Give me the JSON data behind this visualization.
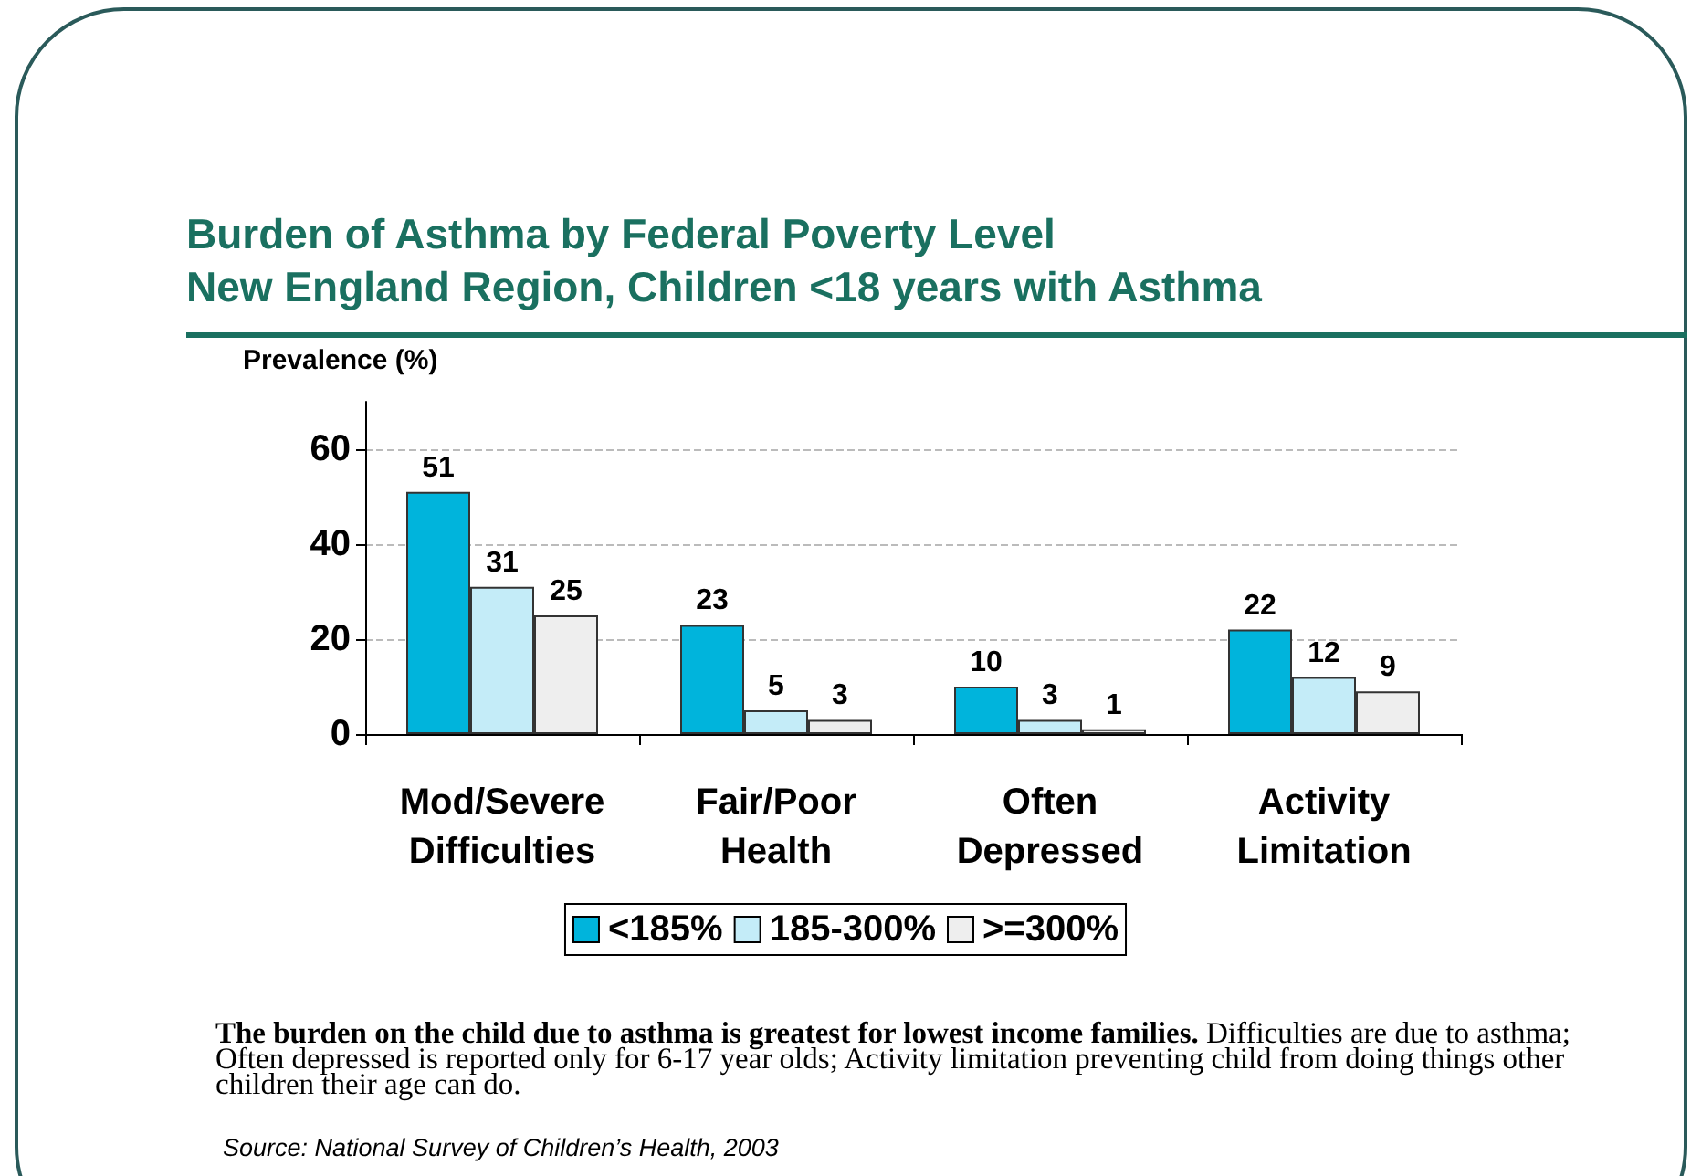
{
  "chart_data": {
    "type": "bar",
    "title": "Burden of Asthma by Federal Poverty Level\nNew England Region, Children <18 years with Asthma",
    "ylabel": "Prevalence (%)",
    "categories": [
      "Mod/Severe\nDifficulties",
      "Fair/Poor\nHealth",
      "Often\nDepressed",
      "Activity\nLimitation"
    ],
    "series": [
      {
        "name": "<185%",
        "color": "#00b4dc",
        "values": [
          51,
          23,
          10,
          22
        ]
      },
      {
        "name": "185-300%",
        "color": "#c4ecf8",
        "values": [
          31,
          5,
          3,
          12
        ]
      },
      {
        "name": ">=300%",
        "color": "#eeeeee",
        "values": [
          25,
          3,
          1,
          9
        ]
      }
    ],
    "ylim": [
      0,
      70
    ],
    "yticks": [
      0,
      20,
      40,
      60
    ],
    "grid": "y",
    "legend": "bottom",
    "data_labels": true,
    "annotations": [
      "The burden on the child due to asthma is greatest for lowest income families.",
      "Difficulties are due to asthma;  Often depressed is reported only for 6-17 year olds;  Activity limitation preventing child from doing things other children their age can do.",
      "Source: National Survey of Children’s Health, 2003"
    ]
  }
}
